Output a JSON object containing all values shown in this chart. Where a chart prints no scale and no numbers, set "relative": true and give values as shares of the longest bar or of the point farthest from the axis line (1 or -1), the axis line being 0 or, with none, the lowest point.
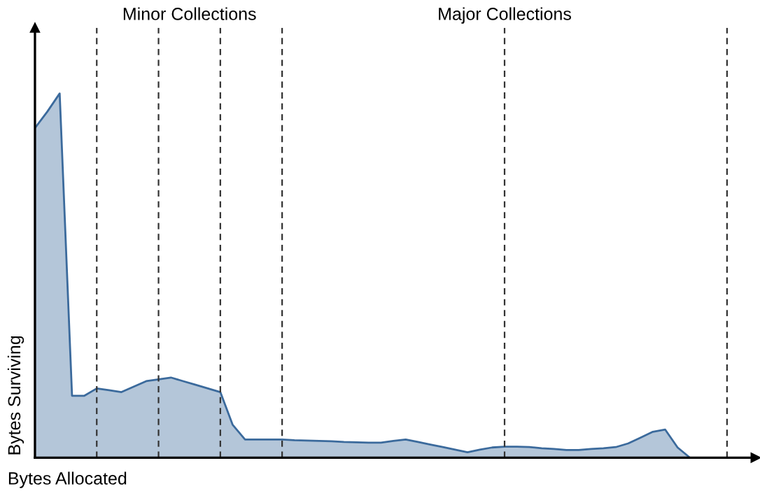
{
  "chart_data": {
    "type": "area",
    "relative": true,
    "xlabel": "Bytes Allocated",
    "ylabel": "Bytes Surviving",
    "categories": [
      null,
      null,
      null,
      null,
      null,
      null,
      null,
      null,
      null,
      null,
      null,
      null,
      null,
      null,
      null,
      null,
      null,
      null,
      null,
      null,
      null,
      null,
      null,
      null,
      null,
      null,
      null,
      null,
      null,
      null,
      null,
      null,
      null,
      null,
      null,
      null,
      null,
      null,
      null,
      null,
      null,
      null,
      null,
      null,
      null,
      null,
      null,
      null,
      null,
      null,
      null,
      null,
      null,
      null,
      null,
      null,
      null,
      null,
      null
    ],
    "series": [
      {
        "color": "#3b6a9c",
        "values": [
          0.905,
          0.95,
          1.0,
          0.17,
          0.17,
          0.19,
          0.185,
          0.18,
          0.195,
          0.21,
          0.215,
          0.22,
          0.21,
          0.2,
          0.19,
          0.18,
          0.09,
          0.05,
          0.05,
          0.05,
          0.05,
          0.048,
          0.047,
          0.046,
          0.045,
          0.043,
          0.042,
          0.041,
          0.041,
          0.046,
          0.05,
          0.043,
          0.036,
          0.029,
          0.022,
          0.015,
          0.022,
          0.028,
          0.03,
          0.03,
          0.029,
          0.026,
          0.024,
          0.021,
          0.021,
          0.024,
          0.026,
          0.029,
          0.039,
          0.055,
          0.071,
          0.077,
          0.028,
          0.0,
          null,
          null,
          null,
          null,
          null
        ]
      }
    ],
    "grid": "x",
    "annotations": [
      "Minor Collections",
      "Major Collections"
    ]
  }
}
